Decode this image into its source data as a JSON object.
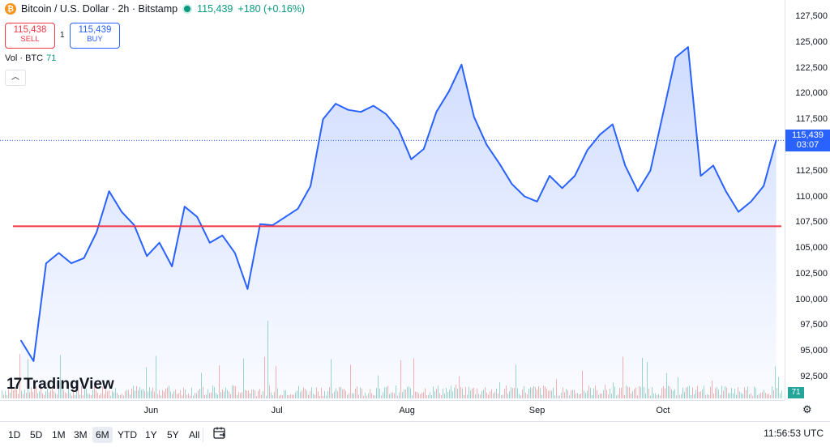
{
  "header": {
    "symbol_title": "Bitcoin / U.S. Dollar · 2h · Bitstamp",
    "last_price": "115,439",
    "change": "+180 (+0.16%)",
    "sell_price": "115,438",
    "sell_label": "SELL",
    "buy_price": "115,439",
    "buy_label": "BUY",
    "spread": "1",
    "vol_label": "Vol · BTC",
    "vol_value": "71"
  },
  "price_axis": {
    "ticks": [
      "127,500",
      "125,000",
      "122,500",
      "120,000",
      "117,500",
      "115,000",
      "112,500",
      "110,000",
      "107,500",
      "105,000",
      "102,500",
      "100,000",
      "97,500",
      "95,000",
      "92,500"
    ],
    "last_label_price": "115,439",
    "last_label_countdown": "03:07",
    "volume_label": "71"
  },
  "time_axis": {
    "labels": [
      "Jun",
      "Jul",
      "Aug",
      "Sep",
      "Oct"
    ]
  },
  "ranges": [
    "1D",
    "5D",
    "1M",
    "3M",
    "6M",
    "YTD",
    "1Y",
    "5Y",
    "All"
  ],
  "active_range": "6M",
  "clock": "11:56:53 UTC",
  "branding": "TradingView",
  "colors": {
    "line": "#2962ff",
    "fill": "#dfe6fb",
    "horizontal_line": "#f23645",
    "up": "#26a69a",
    "down": "#ef5350"
  },
  "chart_data": {
    "type": "area",
    "xlabel": "",
    "ylabel": "",
    "ylim": [
      92500,
      127500
    ],
    "horizontal_level": 107100,
    "x": [
      "2025-05-01",
      "2025-05-04",
      "2025-05-07",
      "2025-05-10",
      "2025-05-13",
      "2025-05-16",
      "2025-05-19",
      "2025-05-22",
      "2025-05-25",
      "2025-05-28",
      "2025-05-31",
      "2025-06-03",
      "2025-06-06",
      "2025-06-09",
      "2025-06-12",
      "2025-06-15",
      "2025-06-18",
      "2025-06-21",
      "2025-06-24",
      "2025-06-27",
      "2025-06-30",
      "2025-07-03",
      "2025-07-06",
      "2025-07-09",
      "2025-07-12",
      "2025-07-15",
      "2025-07-18",
      "2025-07-21",
      "2025-07-24",
      "2025-07-27",
      "2025-07-30",
      "2025-08-02",
      "2025-08-05",
      "2025-08-08",
      "2025-08-11",
      "2025-08-14",
      "2025-08-17",
      "2025-08-20",
      "2025-08-23",
      "2025-08-26",
      "2025-08-29",
      "2025-09-01",
      "2025-09-04",
      "2025-09-07",
      "2025-09-10",
      "2025-09-13",
      "2025-09-16",
      "2025-09-19",
      "2025-09-22",
      "2025-09-25",
      "2025-09-28",
      "2025-10-01",
      "2025-10-04",
      "2025-10-07",
      "2025-10-10",
      "2025-10-13",
      "2025-10-16",
      "2025-10-19",
      "2025-10-22",
      "2025-10-25",
      "2025-10-28"
    ],
    "values": [
      96000,
      94000,
      103500,
      104500,
      103500,
      104000,
      106500,
      110500,
      108500,
      107200,
      104200,
      105500,
      103200,
      109000,
      108000,
      105500,
      106200,
      104500,
      101000,
      107300,
      107200,
      108000,
      108800,
      111000,
      117500,
      119000,
      118400,
      118200,
      118800,
      118000,
      116500,
      113600,
      114600,
      118200,
      120200,
      122800,
      117700,
      115000,
      113200,
      111200,
      110000,
      109500,
      112000,
      110800,
      112000,
      114500,
      116000,
      117000,
      113000,
      110500,
      112500,
      118000,
      123500,
      124500,
      112000,
      113000,
      110500,
      108500,
      109500,
      111000,
      115439
    ],
    "volume_note": ""
  }
}
